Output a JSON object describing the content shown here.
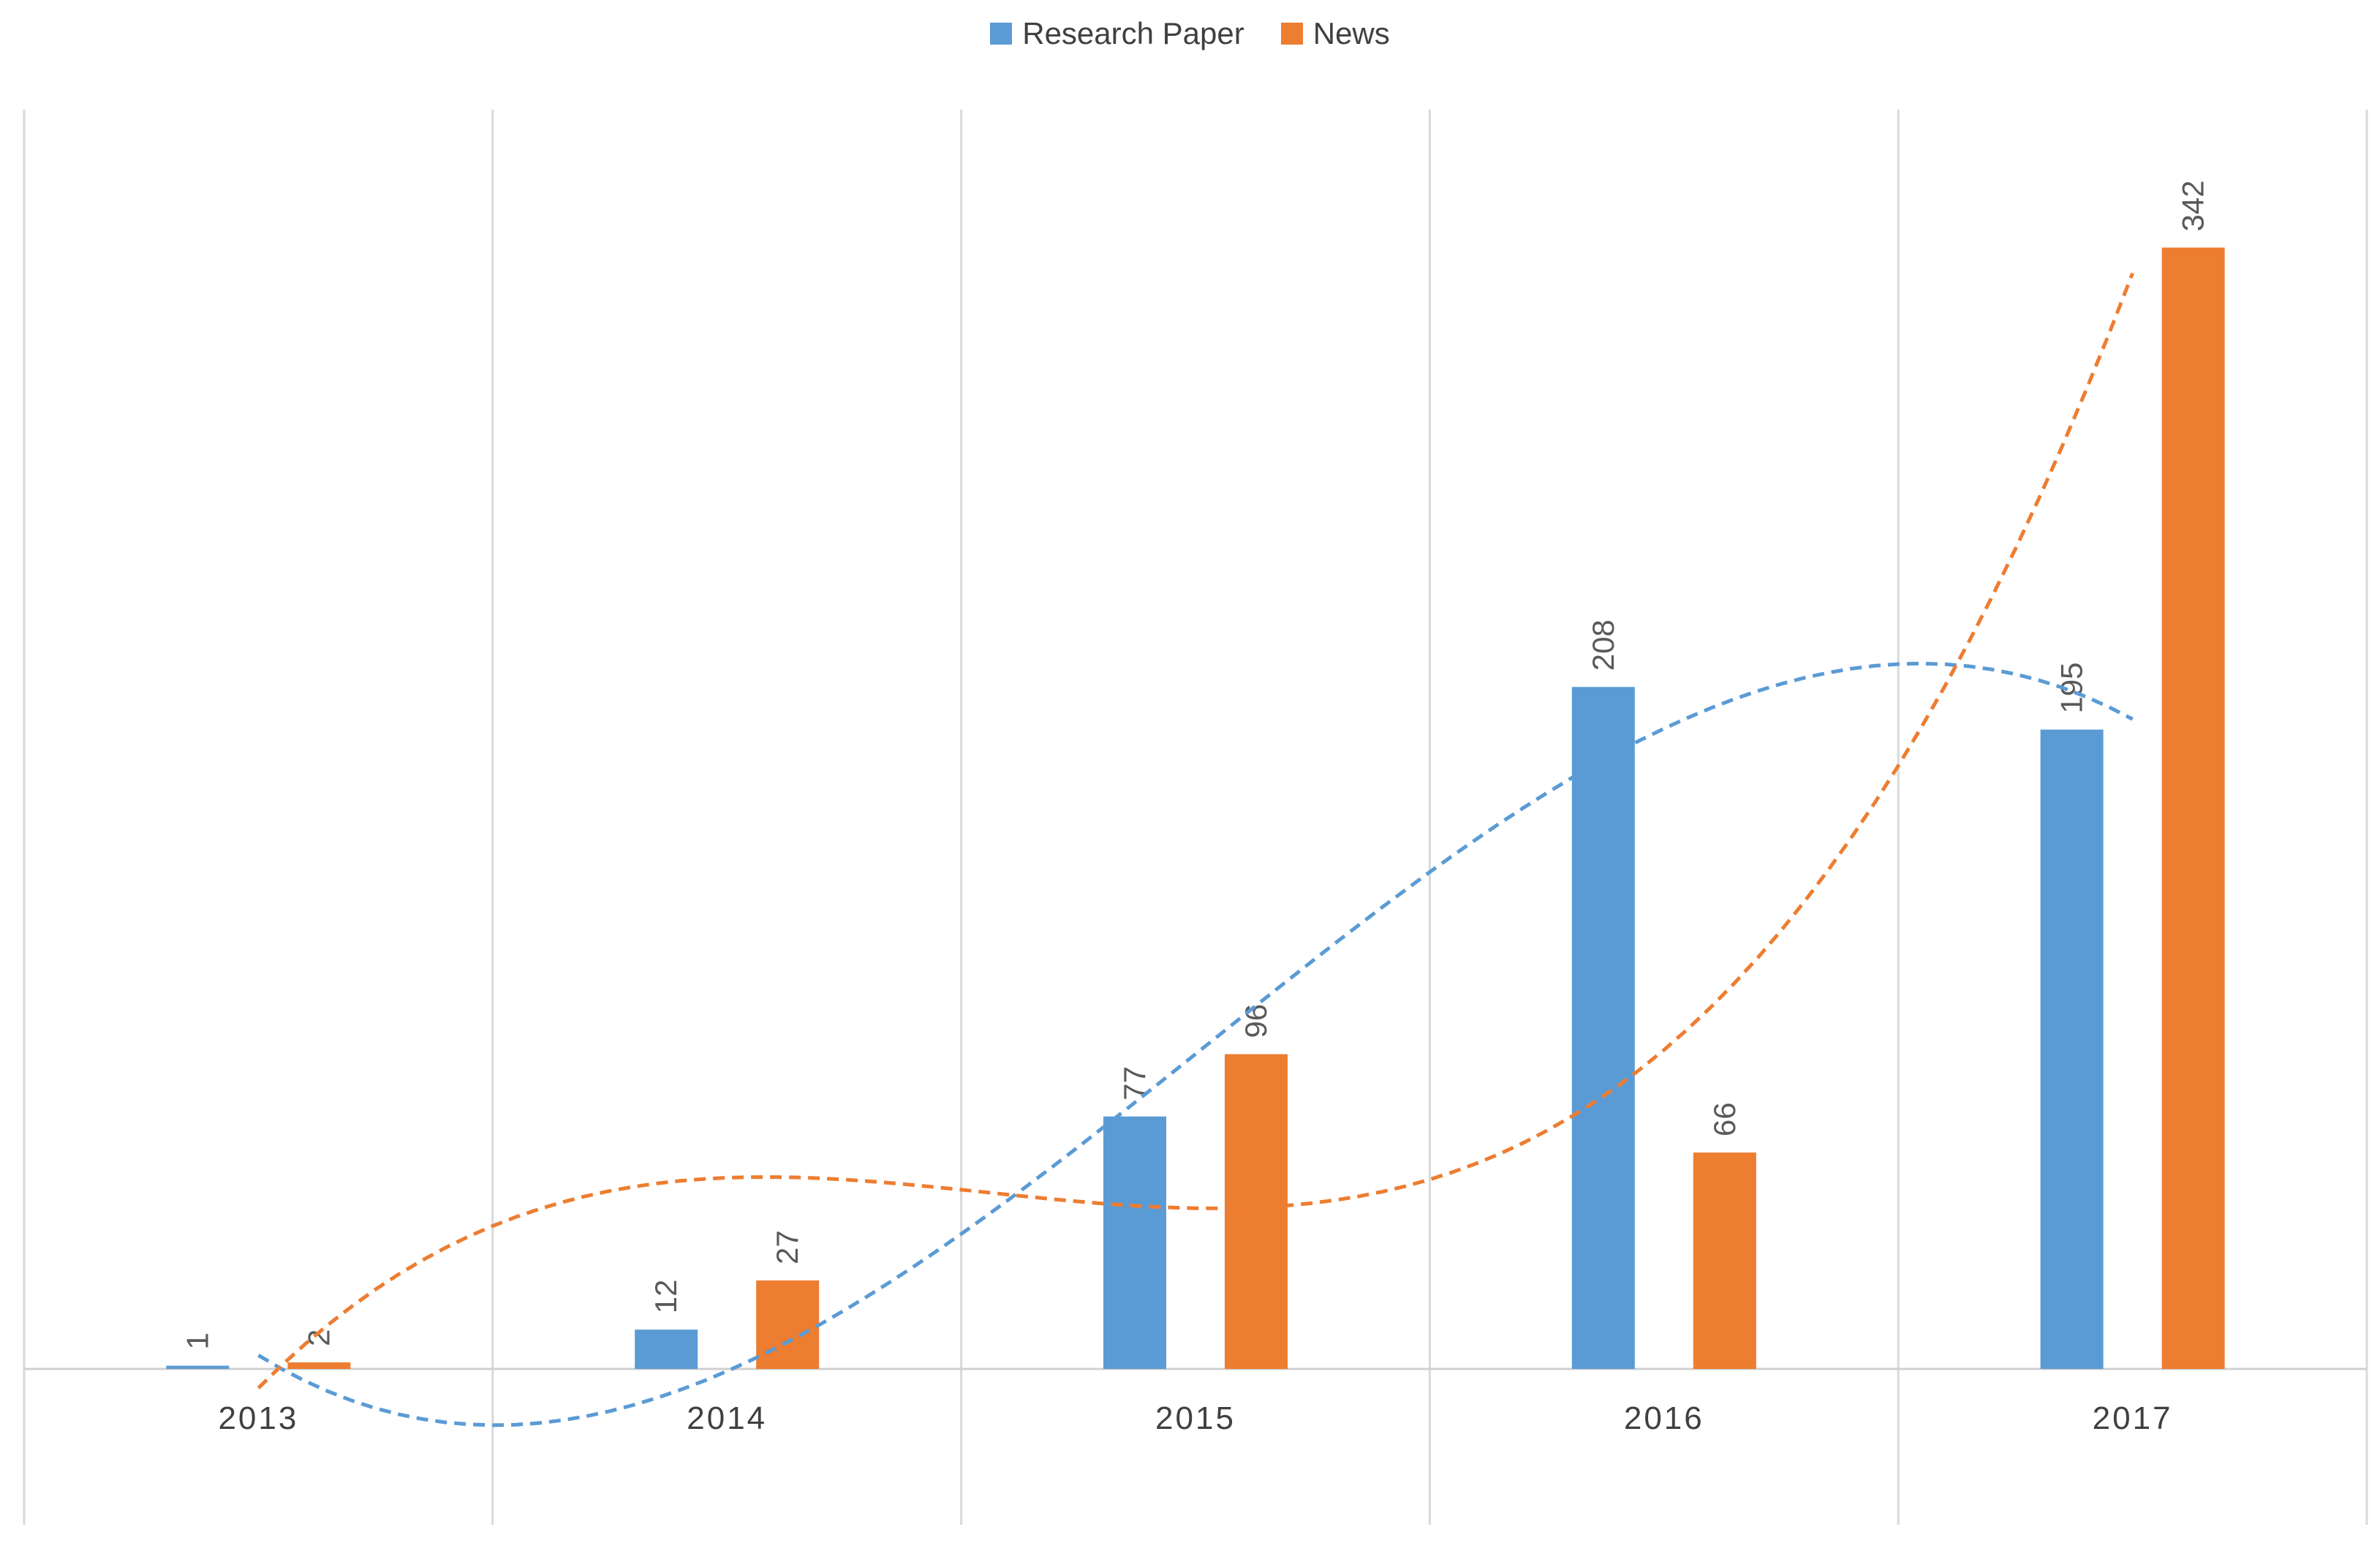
{
  "chart_data": {
    "type": "bar",
    "title": "",
    "xlabel": "",
    "ylabel": "",
    "categories": [
      "2013",
      "2014",
      "2015",
      "2016",
      "2017"
    ],
    "ylim": [
      0,
      370
    ],
    "grid": "vertical",
    "legend": "top-center",
    "series": [
      {
        "name": "Research Paper",
        "color": "#5b9bd5",
        "values": [
          1,
          12,
          77,
          208,
          195
        ],
        "labels": [
          "1",
          "12",
          "77",
          "208",
          "195"
        ]
      },
      {
        "name": "News",
        "color": "#ed7d31",
        "values": [
          2,
          27,
          96,
          66,
          342
        ],
        "labels": [
          "2",
          "27",
          "96",
          "66",
          "342"
        ]
      }
    ],
    "trendlines": [
      {
        "series": "Research Paper",
        "kind": "polynomial",
        "style": "dashed",
        "color": "#5b9bd5"
      },
      {
        "series": "News",
        "kind": "polynomial",
        "style": "dashed",
        "color": "#ed7d31"
      }
    ]
  }
}
